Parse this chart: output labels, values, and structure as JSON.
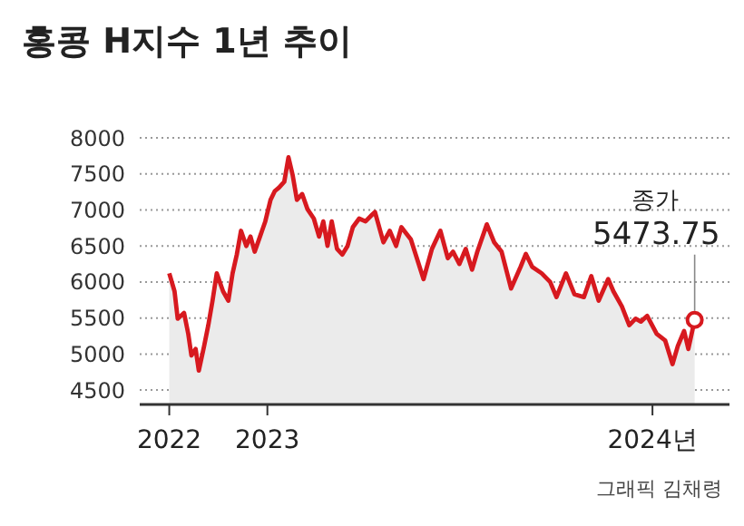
{
  "chart_data": {
    "type": "area",
    "title": "홍콩 H지수 1년 추이",
    "x": [
      "2022-09-30",
      "2022-10-05",
      "2022-10-08",
      "2022-10-14",
      "2022-10-18",
      "2022-10-21",
      "2022-10-25",
      "2022-10-28",
      "2022-11-02",
      "2022-11-06",
      "2022-11-10",
      "2022-11-14",
      "2022-11-20",
      "2022-11-25",
      "2022-11-29",
      "2022-12-03",
      "2022-12-07",
      "2022-12-12",
      "2022-12-16",
      "2022-12-20",
      "2022-12-25",
      "2022-12-30",
      "2023-01-04",
      "2023-01-08",
      "2023-01-12",
      "2023-01-17",
      "2023-01-21",
      "2023-01-25",
      "2023-01-29",
      "2023-02-03",
      "2023-02-08",
      "2023-02-14",
      "2023-02-19",
      "2023-02-23",
      "2023-02-27",
      "2023-03-03",
      "2023-03-08",
      "2023-03-13",
      "2023-03-18",
      "2023-03-23",
      "2023-03-29",
      "2023-04-04",
      "2023-04-10",
      "2023-04-13",
      "2023-04-21",
      "2023-04-27",
      "2023-05-03",
      "2023-05-08",
      "2023-05-17",
      "2023-05-29",
      "2023-06-06",
      "2023-06-14",
      "2023-06-21",
      "2023-06-26",
      "2023-07-02",
      "2023-07-08",
      "2023-07-14",
      "2023-07-19",
      "2023-07-28",
      "2023-08-04",
      "2023-08-11",
      "2023-08-20",
      "2023-08-29",
      "2023-09-03",
      "2023-09-09",
      "2023-09-18",
      "2023-09-26",
      "2023-10-02",
      "2023-10-11",
      "2023-10-19",
      "2023-10-28",
      "2023-11-04",
      "2023-11-11",
      "2023-11-20",
      "2023-11-25",
      "2023-12-03",
      "2023-12-10",
      "2023-12-16",
      "2023-12-21",
      "2023-12-27",
      "2024-01-05",
      "2024-01-13",
      "2024-01-20",
      "2024-01-25",
      "2024-01-31",
      "2024-02-04",
      "2024-02-10"
    ],
    "series": [
      {
        "color": "#d7191f",
        "values": [
          6120,
          5870,
          5490,
          5570,
          5280,
          4980,
          5070,
          4770,
          5110,
          5400,
          5740,
          6120,
          5870,
          5740,
          6120,
          6380,
          6710,
          6500,
          6630,
          6420,
          6630,
          6840,
          7140,
          7260,
          7310,
          7390,
          7730,
          7480,
          7140,
          7220,
          7010,
          6880,
          6630,
          6840,
          6500,
          6840,
          6460,
          6380,
          6500,
          6760,
          6880,
          6840,
          6930,
          6970,
          6550,
          6710,
          6500,
          6760,
          6590,
          6040,
          6460,
          6710,
          6330,
          6420,
          6250,
          6460,
          6170,
          6420,
          6800,
          6550,
          6420,
          5910,
          6210,
          6390,
          6210,
          6120,
          6000,
          5790,
          6120,
          5830,
          5790,
          6080,
          5740,
          6040,
          5870,
          5660,
          5400,
          5490,
          5450,
          5530,
          5280,
          5190,
          4860,
          5110,
          5320,
          5070,
          5473.75
        ]
      }
    ],
    "xlim": [
      "2022-09-02",
      "2024-03-14"
    ],
    "xticks": [
      {
        "value": "2022-09-30",
        "label": "2022"
      },
      {
        "value": "2023-01-01",
        "label": "2023"
      },
      {
        "value": "2024-01-01",
        "label": "2024년"
      }
    ],
    "ylim": [
      4300,
      8000
    ],
    "yticks": [
      4500,
      5000,
      5500,
      6000,
      6500,
      7000,
      7500,
      8000
    ],
    "grid": "y",
    "annotations": [
      {
        "text": "종가 5473.75",
        "x": "2024-02-10",
        "y": 5473.75
      },
      "그래픽 김채령"
    ]
  }
}
